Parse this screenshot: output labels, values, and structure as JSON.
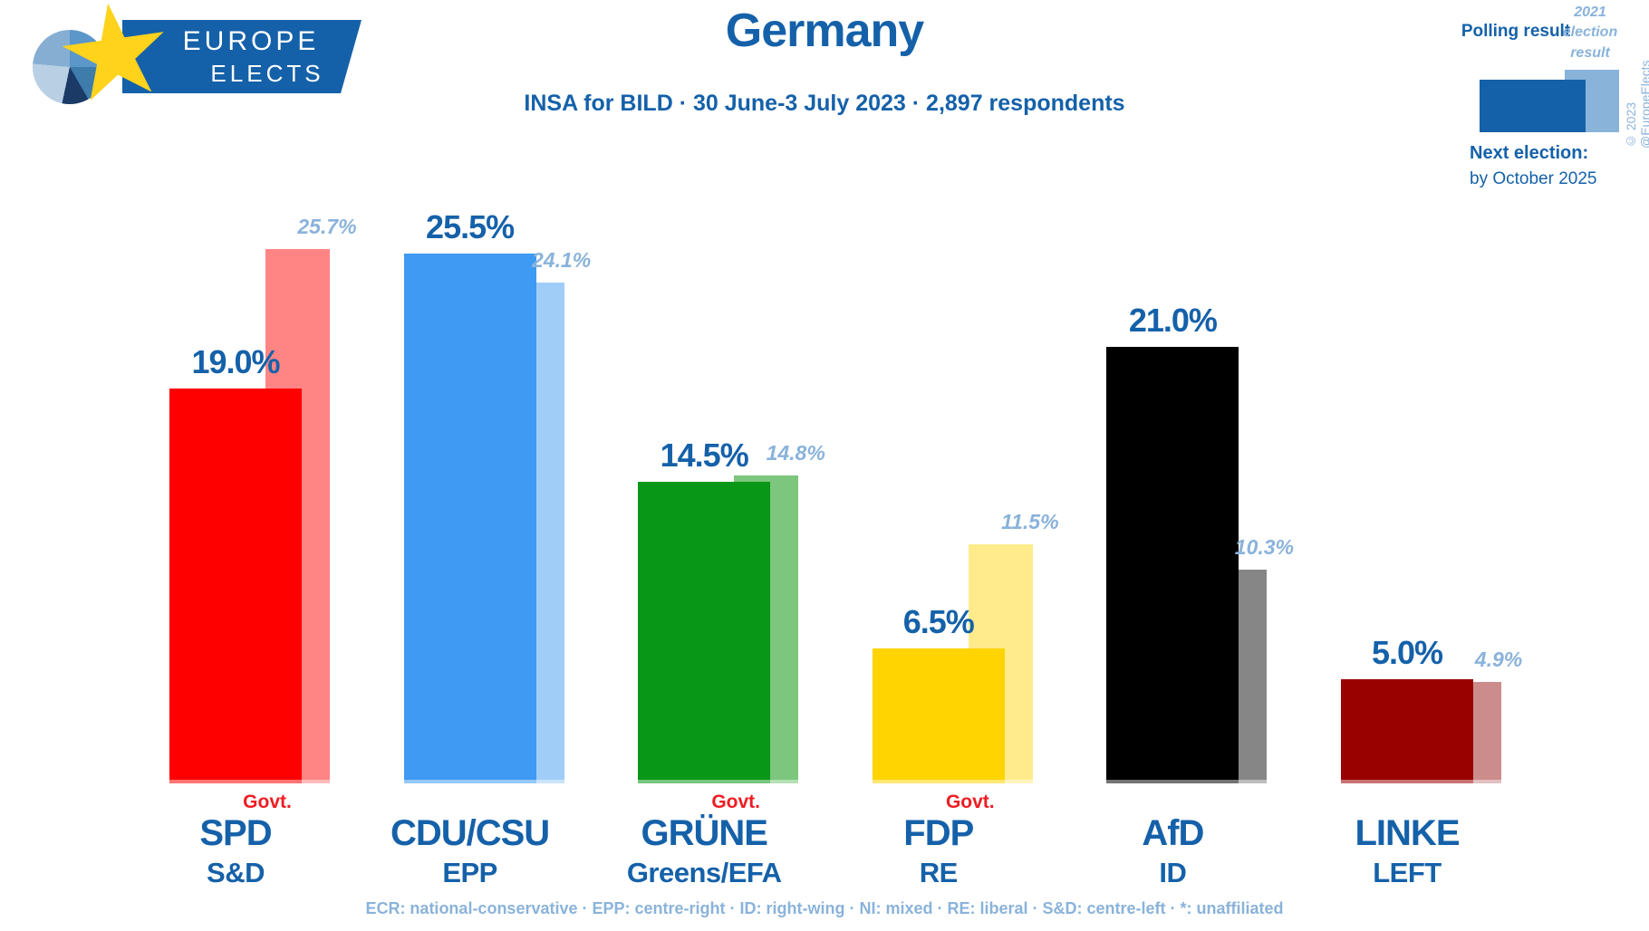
{
  "header": {
    "logo": {
      "line1": "EUROPE",
      "line2": "ELECTS"
    },
    "title": "Germany",
    "subtitle": "INSA for BILD · 30 June-3 July 2023 · 2,897 respondents"
  },
  "legend": {
    "polling_label": "Polling result",
    "election_label": "2021 election result",
    "next_election_title": "Next election:",
    "next_election_date": "by October 2025",
    "copyright": "© 2023 @EuropeElects"
  },
  "footer": {
    "glossary": "ECR: national-conservative · EPP: centre-right · ID: right-wing · NI: mixed · RE: liberal · S&D: centre-left · *: unaffiliated"
  },
  "colors": {
    "brand_blue": "#1561a9",
    "light_blue": "#8ab3da",
    "govt_red": "#ee1d23"
  },
  "chart_data": {
    "type": "bar",
    "title": "Germany",
    "unit": "%",
    "ylim": [
      0,
      27
    ],
    "grid": false,
    "legend_position": "top-right",
    "series_labels": [
      "Polling result",
      "2021 election result"
    ],
    "govt_label": "Govt.",
    "categories": [
      "SPD",
      "CDU/CSU",
      "GRÜNE",
      "FDP",
      "AfD",
      "LINKE"
    ],
    "parties": [
      {
        "party": "SPD",
        "group": "S&D",
        "govt": true,
        "polling": 19.0,
        "election_2021": 25.7,
        "color": "#fe0000",
        "election_color": "#ff8585"
      },
      {
        "party": "CDU/CSU",
        "group": "EPP",
        "govt": false,
        "polling": 25.5,
        "election_2021": 24.1,
        "color": "#3e9af2",
        "election_color": "#a0cdf8"
      },
      {
        "party": "GRÜNE",
        "group": "Greens/EFA",
        "govt": true,
        "polling": 14.5,
        "election_2021": 14.8,
        "color": "#089717",
        "election_color": "#7cc77d"
      },
      {
        "party": "FDP",
        "group": "RE",
        "govt": true,
        "polling": 6.5,
        "election_2021": 11.5,
        "color": "#ffd400",
        "election_color": "#ffeb8c"
      },
      {
        "party": "AfD",
        "group": "ID",
        "govt": false,
        "polling": 21.0,
        "election_2021": 10.3,
        "color": "#000000",
        "election_color": "#868686"
      },
      {
        "party": "LINKE",
        "group": "LEFT",
        "govt": false,
        "polling": 5.0,
        "election_2021": 4.9,
        "color": "#990000",
        "election_color": "#cc8c8c"
      }
    ]
  }
}
